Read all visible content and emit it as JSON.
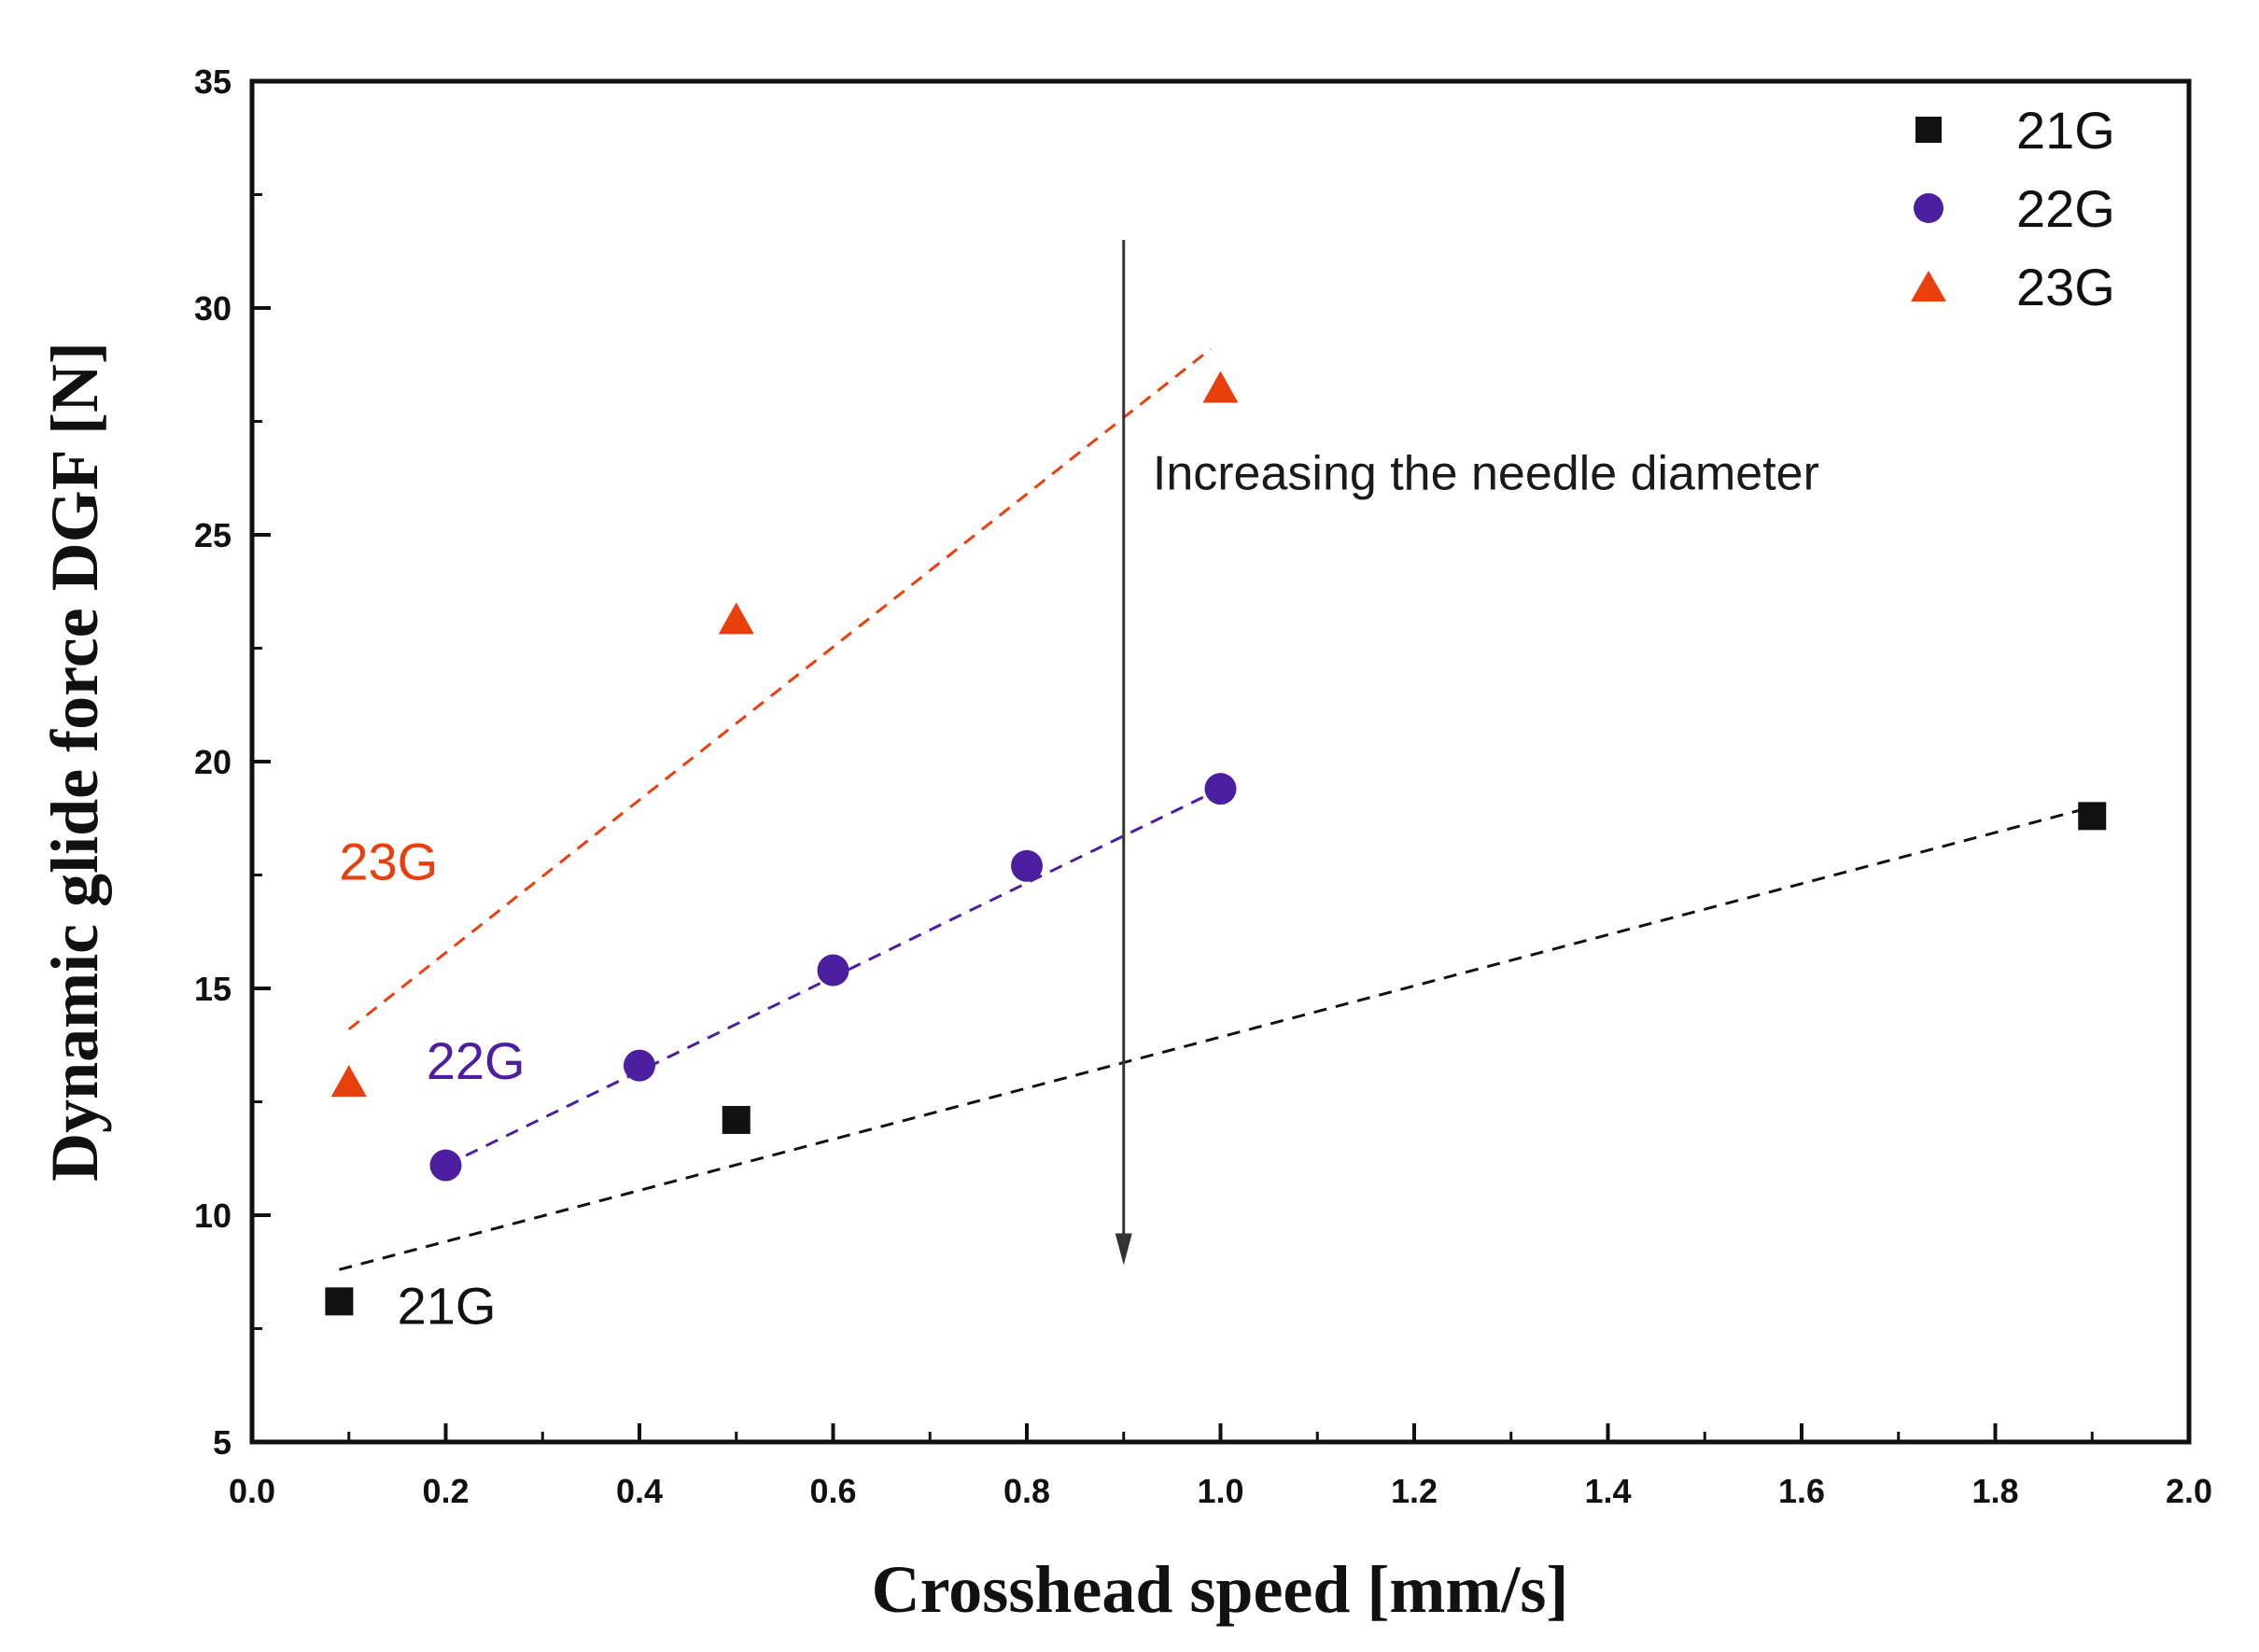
{
  "chart_data": {
    "type": "scatter",
    "title": "",
    "xlabel": "Crosshead speed [mm/s]",
    "ylabel": "Dynamic glide force DGF [N]",
    "xlim": [
      0.0,
      2.0
    ],
    "ylim": [
      5,
      35
    ],
    "xticks": [
      "0.0",
      "0.2",
      "0.4",
      "0.6",
      "0.8",
      "1.0",
      "1.2",
      "1.4",
      "1.6",
      "1.8",
      "2.0"
    ],
    "yticks": [
      "5",
      "10",
      "15",
      "20",
      "25",
      "30",
      "35"
    ],
    "grid": false,
    "legend_position": "top-right",
    "series": [
      {
        "name": "21G",
        "marker": "square",
        "color": "#111111",
        "points": [
          [
            0.09,
            8.1
          ],
          [
            0.5,
            12.1
          ],
          [
            1.9,
            18.8
          ]
        ],
        "fit_line": [
          [
            0.09,
            8.8
          ],
          [
            1.9,
            19.0
          ]
        ]
      },
      {
        "name": "22G",
        "marker": "circle",
        "color": "#4b1fa0",
        "points": [
          [
            0.2,
            11.1
          ],
          [
            0.4,
            13.3
          ],
          [
            0.6,
            15.4
          ],
          [
            0.8,
            17.7
          ],
          [
            1.0,
            19.4
          ]
        ],
        "fit_line": [
          [
            0.2,
            11.1
          ],
          [
            1.0,
            19.4
          ]
        ]
      },
      {
        "name": "23G",
        "marker": "triangle",
        "color": "#e8400c",
        "points": [
          [
            0.1,
            12.9
          ],
          [
            0.5,
            23.1
          ],
          [
            1.0,
            28.2
          ]
        ],
        "fit_line": [
          [
            0.1,
            14.1
          ],
          [
            0.99,
            29.1
          ]
        ]
      }
    ],
    "series_labels": [
      {
        "text": "21G",
        "x": 0.15,
        "y": 7.6,
        "color": "#111111"
      },
      {
        "text": "22G",
        "x": 0.18,
        "y": 13.0,
        "color": "#4b1fa0"
      },
      {
        "text": "23G",
        "x": 0.09,
        "y": 17.4,
        "color": "#e8400c"
      }
    ],
    "annotations": [
      {
        "text": "Increasing the needle diameter",
        "x": 0.93,
        "y": 26.0,
        "arrow_x": 0.9,
        "arrow_from_y": 31.5,
        "arrow_to_y": 8.9
      }
    ]
  }
}
